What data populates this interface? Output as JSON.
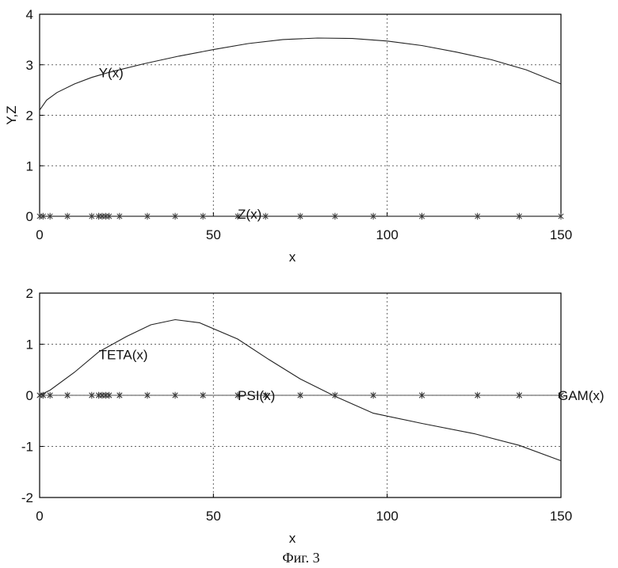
{
  "caption": "Фиг. 3",
  "chart_data": [
    {
      "type": "line",
      "xlabel": "x",
      "ylabel": "Y,Z",
      "xlim": [
        0,
        150
      ],
      "ylim": [
        0,
        4
      ],
      "xticks": [
        "0",
        "50",
        "100",
        "150"
      ],
      "yticks": [
        "0",
        "1",
        "2",
        "3",
        "4"
      ],
      "grid": true,
      "series": [
        {
          "name": "Y(x)",
          "style": "line",
          "x": [
            0,
            2,
            5,
            10,
            15,
            20,
            30,
            40,
            50,
            60,
            70,
            80,
            90,
            100,
            110,
            120,
            130,
            140,
            150
          ],
          "y": [
            2.1,
            2.3,
            2.45,
            2.62,
            2.75,
            2.85,
            3.02,
            3.17,
            3.3,
            3.42,
            3.5,
            3.53,
            3.52,
            3.47,
            3.38,
            3.25,
            3.1,
            2.9,
            2.62
          ]
        },
        {
          "name": "Z(x)",
          "style": "markers",
          "x": [
            0,
            1,
            3,
            8,
            15,
            17,
            18,
            19,
            20,
            23,
            31,
            39,
            47,
            57,
            65,
            75,
            85,
            96,
            110,
            126,
            138,
            150
          ],
          "y": [
            0,
            0,
            0,
            0,
            0,
            0,
            0,
            0,
            0,
            0,
            0,
            0,
            0,
            0,
            0,
            0,
            0,
            0,
            0,
            0,
            0,
            0
          ]
        }
      ],
      "annotations": [
        {
          "text": "Y(x)",
          "x": 17,
          "y": 2.85
        },
        {
          "text": "Z(x)",
          "x": 57,
          "y": 0.05
        }
      ]
    },
    {
      "type": "line",
      "xlabel": "x",
      "ylabel": "",
      "xlim": [
        0,
        150
      ],
      "ylim": [
        -2,
        2
      ],
      "xticks": [
        "0",
        "50",
        "100",
        "150"
      ],
      "yticks": [
        "-2",
        "-1",
        "0",
        "1",
        "2"
      ],
      "grid": true,
      "series": [
        {
          "name": "TETA(x)",
          "style": "line",
          "x": [
            0,
            3,
            10,
            17,
            25,
            32,
            39,
            46,
            57,
            66,
            75,
            85,
            96,
            110,
            125,
            138,
            150
          ],
          "y": [
            0,
            0.1,
            0.45,
            0.85,
            1.15,
            1.38,
            1.48,
            1.42,
            1.1,
            0.7,
            0.32,
            -0.02,
            -0.35,
            -0.55,
            -0.75,
            -0.98,
            -1.28
          ]
        },
        {
          "name": "PSI(x)",
          "style": "markers",
          "x": [
            0,
            1,
            3,
            8,
            15,
            17,
            18,
            19,
            20,
            23,
            31,
            39,
            47,
            57,
            65,
            75,
            85,
            96,
            110,
            126,
            138,
            150
          ],
          "y": [
            0,
            0,
            0,
            0,
            0,
            0,
            0,
            0,
            0,
            0,
            0,
            0,
            0,
            0,
            0,
            0,
            0,
            0,
            0,
            0,
            0,
            0
          ]
        },
        {
          "name": "GAM(x)",
          "style": "markers",
          "x": [
            0,
            1,
            3,
            8,
            15,
            17,
            18,
            19,
            20,
            23,
            31,
            39,
            47,
            57,
            65,
            75,
            85,
            96,
            110,
            126,
            138,
            150
          ],
          "y": [
            0,
            0,
            0,
            0,
            0,
            0,
            0,
            0,
            0,
            0,
            0,
            0,
            0,
            0,
            0,
            0,
            0,
            0,
            0,
            0,
            0,
            0
          ]
        }
      ],
      "annotations": [
        {
          "text": "TETA(x)",
          "x": 17,
          "y": 0.8
        },
        {
          "text": "PSI(x)",
          "x": 57,
          "y": 0.0
        },
        {
          "text": "GAM(x)",
          "x": 151,
          "y": 0.0
        }
      ]
    }
  ]
}
